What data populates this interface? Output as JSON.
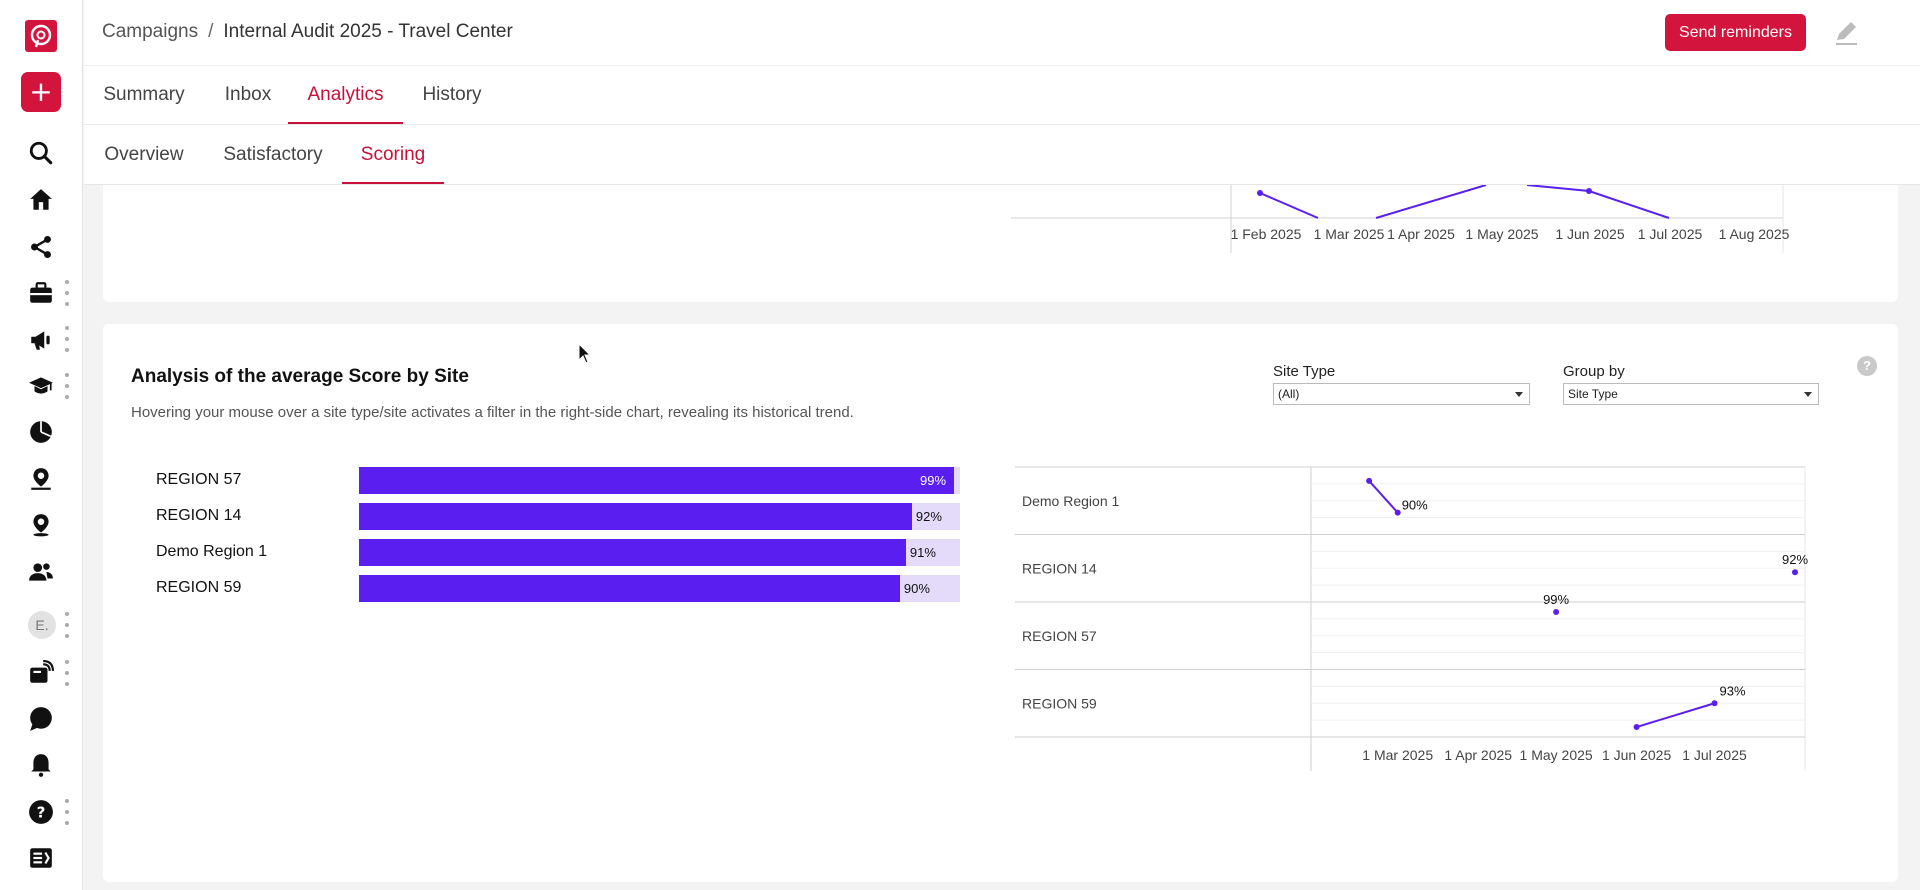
{
  "app": {
    "breadcrumb": {
      "parent": "Campaigns",
      "separator": "/",
      "current": "Internal Audit 2025 - Travel Center"
    },
    "send_reminders_label": "Send reminders",
    "avatar_initial": "E."
  },
  "tabs": [
    {
      "label": "Summary",
      "active": false
    },
    {
      "label": "Inbox",
      "active": false
    },
    {
      "label": "Analytics",
      "active": true
    },
    {
      "label": "History",
      "active": false
    }
  ],
  "subtabs": [
    {
      "label": "Overview",
      "active": false
    },
    {
      "label": "Satisfactory",
      "active": false
    },
    {
      "label": "Scoring",
      "active": true
    }
  ],
  "sidebar_icons": [
    "logo-icon",
    "add-icon",
    "search-icon",
    "home-icon",
    "share-icon",
    "briefcase-icon",
    "megaphone-icon",
    "graduation-cap-icon",
    "pie-chart-icon",
    "location-icon",
    "location-pin-icon",
    "users-icon",
    "avatar",
    "feed-icon",
    "chat-icon",
    "bell-icon",
    "help-icon",
    "forms-icon"
  ],
  "top_chart": {
    "x_ticks": [
      "1 Feb 2025",
      "1 Mar 2025",
      "1 Apr 2025",
      "1 May 2025",
      "1 Jun 2025",
      "1 Jul 2025",
      "1 Aug 2025"
    ]
  },
  "section": {
    "title": "Analysis of the average Score by Site",
    "subtitle": "Hovering your mouse over a site type/site activates a filter in the right-side chart, revealing its historical trend.",
    "filters": {
      "site_type": {
        "label": "Site Type",
        "value": "(All)"
      },
      "group_by": {
        "label": "Group by",
        "value": "Site Type"
      }
    }
  },
  "chart_data": [
    {
      "type": "bar",
      "orientation": "horizontal",
      "categories": [
        "REGION 57",
        "REGION 14",
        "Demo Region 1",
        "REGION 59"
      ],
      "values": [
        99,
        92,
        91,
        90
      ],
      "labels": [
        "99%",
        "92%",
        "91%",
        "90%"
      ],
      "xlim": [
        0,
        100
      ],
      "unit": "%"
    },
    {
      "type": "line",
      "layout": "small-multiples",
      "x_ticks": [
        "1 Mar 2025",
        "1 Apr 2025",
        "1 May 2025",
        "1 Jun 2025",
        "1 Jul 2025"
      ],
      "series": [
        {
          "name": "Demo Region 1",
          "points": [
            {
              "x": "2025-02-18",
              "y": 98
            },
            {
              "x": "2025-03-01",
              "y": 90,
              "label": "90%"
            }
          ]
        },
        {
          "name": "REGION 14",
          "points": [
            {
              "x": "2025-08-01",
              "y": 92,
              "label": "92%"
            }
          ]
        },
        {
          "name": "REGION 57",
          "points": [
            {
              "x": "2025-05-01",
              "y": 99,
              "label": "99%"
            }
          ]
        },
        {
          "name": "REGION 59",
          "points": [
            {
              "x": "2025-06-01",
              "y": 87
            },
            {
              "x": "2025-07-01",
              "y": 93,
              "label": "93%"
            }
          ]
        }
      ]
    }
  ]
}
